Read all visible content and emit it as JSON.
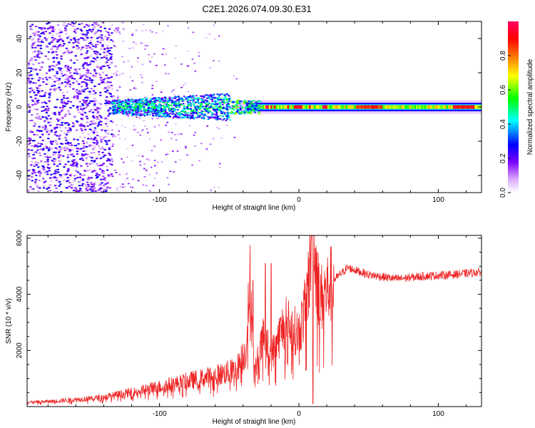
{
  "title": "C2E1.2026.074.09.30.E31",
  "chart_data": [
    {
      "type": "heatmap",
      "xlabel": "Height of straight line (km)",
      "ylabel": "Frequency (Hz)",
      "xlim": [
        -195,
        131
      ],
      "ylim": [
        -50,
        50
      ],
      "xticks": [
        -100,
        0,
        100
      ],
      "yticks": [
        -40,
        -20,
        0,
        20,
        40
      ],
      "colorbar": {
        "label": "Normalized spectral amplitude",
        "range": [
          0,
          1
        ],
        "ticks": [
          "0.0",
          "0.2",
          "0.4",
          "0.6",
          "0.8"
        ],
        "palette": [
          "#ffffff",
          "#d9a6ff",
          "#7a00ff",
          "#0000ff",
          "#00ffff",
          "#00ff00",
          "#ffff00",
          "#ff8800",
          "#ff0000",
          "#ff0066"
        ]
      },
      "description_bands": [
        {
          "x": [
            -195,
            -135
          ],
          "freq": [
            -50,
            50
          ],
          "amplitude": [
            0.05,
            0.3
          ]
        },
        {
          "x": [
            -135,
            -50
          ],
          "freq": [
            -8,
            8
          ],
          "amplitude": [
            0.2,
            0.45
          ]
        },
        {
          "x": [
            -35,
            131
          ],
          "freq": [
            -3,
            3
          ],
          "amplitude": [
            0.6,
            1.0
          ]
        }
      ]
    },
    {
      "type": "line",
      "xlabel": "Height of straight line (km)",
      "ylabel": "SNR (10 * v/v)",
      "xlim": [
        -195,
        131
      ],
      "ylim": [
        0,
        6100
      ],
      "xticks": [
        -100,
        0,
        100
      ],
      "yticks": [
        2000,
        4000,
        6000
      ],
      "color": "#ee2222",
      "series": [
        {
          "name": "SNR",
          "x": [
            -195,
            -180,
            -160,
            -140,
            -120,
            -100,
            -80,
            -60,
            -45,
            -38,
            -35,
            -32,
            -25,
            -20,
            -10,
            0,
            5,
            8,
            10,
            15,
            25,
            35,
            50,
            70,
            90,
            110,
            131
          ],
          "values": [
            150,
            180,
            250,
            330,
            500,
            700,
            900,
            1100,
            1300,
            2000,
            4500,
            1200,
            2500,
            1800,
            3000,
            2600,
            3600,
            5000,
            6000,
            3800,
            4500,
            4950,
            4700,
            4550,
            4650,
            4700,
            4800
          ]
        }
      ],
      "spikes": [
        {
          "x": -33,
          "value": 4500
        },
        {
          "x": -24,
          "value": 5100
        },
        {
          "x": -20,
          "value": 5100
        },
        {
          "x": 9,
          "value": 6050
        },
        {
          "x": 10,
          "value": 100
        }
      ]
    }
  ]
}
